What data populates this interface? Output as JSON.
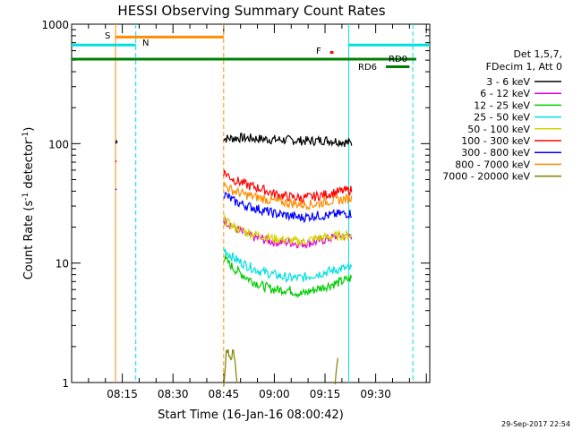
{
  "chart_data": {
    "type": "line",
    "title": "HESSI Observing Summary Count Rates",
    "xlabel": "Start Time (16-Jan-16 08:00:42)",
    "ylabel_main": "Count Rate (s",
    "ylabel_sup": "-1",
    "ylabel_mid": " detector",
    "ylabel_sup2": "-1",
    "ylabel_end": ")",
    "yscale": "log",
    "ylim": [
      1,
      1000
    ],
    "xlim_minutes": [
      0,
      106
    ],
    "x_tick_labels": [
      "08:15",
      "08:30",
      "08:45",
      "09:00",
      "09:15",
      "09:30"
    ],
    "x_tick_minutes": [
      15,
      30,
      45,
      60,
      75,
      90
    ],
    "y_tick_labels": [
      "1",
      "10",
      "100",
      "1000"
    ],
    "y_tick_values": [
      1,
      10,
      100,
      1000
    ],
    "grid": false,
    "legend_position": "right",
    "legend_header": [
      "Det 1,5,7,",
      "FDecim 1, Att 0"
    ],
    "timestamp": "29-Sep-2017 22:54",
    "series": [
      {
        "name": "3 - 6 keV",
        "color": "#000000",
        "segments": [
          {
            "x": [
              13,
              13.6
            ],
            "y": [
              100,
              110
            ]
          },
          {
            "x": [
              45,
              50,
              55,
              60,
              65,
              70,
              75,
              80,
              83
            ],
            "y": [
              110,
              112,
              110,
              108,
              107,
              105,
              107,
              104,
              100
            ]
          }
        ]
      },
      {
        "name": "6 - 12 keV",
        "color": "#e000e0",
        "segments": [
          {
            "x": [
              45,
              48,
              52,
              56,
              60,
              64,
              68,
              72,
              76,
              80,
              83
            ],
            "y": [
              23,
              20,
              17,
              16,
              15,
              15,
              14.5,
              15,
              16,
              17,
              17
            ]
          }
        ]
      },
      {
        "name": "12 - 25 keV",
        "color": "#00cc00",
        "segments": [
          {
            "x": [
              45,
              48,
              52,
              56,
              60,
              64,
              68,
              72,
              76,
              80,
              83
            ],
            "y": [
              11,
              9,
              7.5,
              6.5,
              6,
              6,
              5.5,
              6,
              6.5,
              7,
              7.5
            ]
          }
        ]
      },
      {
        "name": "25 - 50 keV",
        "color": "#00e0e0",
        "segments": [
          {
            "x": [
              45,
              48,
              52,
              56,
              60,
              64,
              68,
              72,
              76,
              80,
              83
            ],
            "y": [
              13,
              11,
              9.5,
              8.5,
              8,
              7.5,
              7.5,
              8,
              8.5,
              9,
              9
            ]
          }
        ]
      },
      {
        "name": "50 - 100 keV",
        "color": "#d4d400",
        "segments": [
          {
            "x": [
              45,
              48,
              52,
              56,
              60,
              64,
              68,
              72,
              76,
              80,
              83
            ],
            "y": [
              23,
              20,
              18,
              17,
              16,
              15.5,
              15,
              16,
              16.5,
              17,
              17
            ]
          }
        ]
      },
      {
        "name": "100 - 300 keV",
        "color": "#ff0000",
        "segments": [
          {
            "x": [
              13,
              13.5
            ],
            "y": [
              70,
              80
            ]
          },
          {
            "x": [
              45,
              48,
              52,
              56,
              60,
              64,
              68,
              72,
              76,
              80,
              83
            ],
            "y": [
              58,
              50,
              45,
              42,
              38,
              36,
              35,
              36,
              38,
              40,
              41
            ]
          }
        ]
      },
      {
        "name": "300 - 800 keV",
        "color": "#0000ff",
        "segments": [
          {
            "x": [
              13,
              13.5
            ],
            "y": [
              40,
              48
            ]
          },
          {
            "x": [
              45,
              48,
              52,
              56,
              60,
              64,
              68,
              72,
              76,
              80,
              83
            ],
            "y": [
              38,
              33,
              30,
              28,
              26,
              25,
              24,
              25,
              25,
              26,
              26
            ]
          }
        ]
      },
      {
        "name": "800 - 7000 keV",
        "color": "#ff8c00",
        "segments": [
          {
            "x": [
              45,
              48,
              52,
              56,
              60,
              64,
              68,
              72,
              76,
              80,
              83
            ],
            "y": [
              45,
              40,
              37,
              35,
              33,
              32,
              31,
              31,
              33,
              34,
              35
            ]
          }
        ]
      },
      {
        "name": "7000 - 20000 keV",
        "color": "#808000",
        "segments": [
          {
            "x": [
              45,
              46,
              47,
              48,
              49
            ],
            "y": [
              1,
              2,
              1.6,
              1.8,
              1
            ]
          },
          {
            "x": [
              78,
              79
            ],
            "y": [
              1,
              2
            ]
          }
        ]
      }
    ],
    "annotations": [
      {
        "label": "S",
        "color": "#ff8c00"
      },
      {
        "label": "N",
        "color": "#00e0e0"
      },
      {
        "label": "F",
        "color": "#ff0000"
      },
      {
        "label": "RD0",
        "color": "#008000"
      },
      {
        "label": "RD6",
        "color": "#008000"
      }
    ],
    "orbit_bars": [
      {
        "name": "saa",
        "color": "#ff8c00",
        "x": [
          13,
          45
        ],
        "y": 780
      },
      {
        "name": "night-1",
        "color": "#00e0e0",
        "x": [
          0,
          19
        ],
        "y": 670
      },
      {
        "name": "night-2",
        "color": "#00e0e0",
        "x": [
          82,
          106
        ],
        "y": 670
      },
      {
        "name": "rd0",
        "color": "#008000",
        "x": [
          0,
          102
        ],
        "y": 510
      },
      {
        "name": "rd6",
        "color": "#008000",
        "x": [
          93,
          100
        ],
        "y": 440
      },
      {
        "name": "flare",
        "color": "#ff0000",
        "x": [
          76.5,
          77.5
        ],
        "y": 580
      }
    ],
    "vertical_lines": [
      {
        "name": "saa-start",
        "x": 13,
        "color": "#ff8c00",
        "style": "solid"
      },
      {
        "name": "night-end",
        "x": 19,
        "color": "#00e0e0",
        "style": "dashed"
      },
      {
        "name": "saa-end",
        "x": 45,
        "color": "#ff8c00",
        "style": "dashed"
      },
      {
        "name": "night-start",
        "x": 82,
        "color": "#00e0e0",
        "style": "solid"
      },
      {
        "name": "night-end-2",
        "x": 101,
        "color": "#00e0e0",
        "style": "dashed"
      }
    ]
  }
}
